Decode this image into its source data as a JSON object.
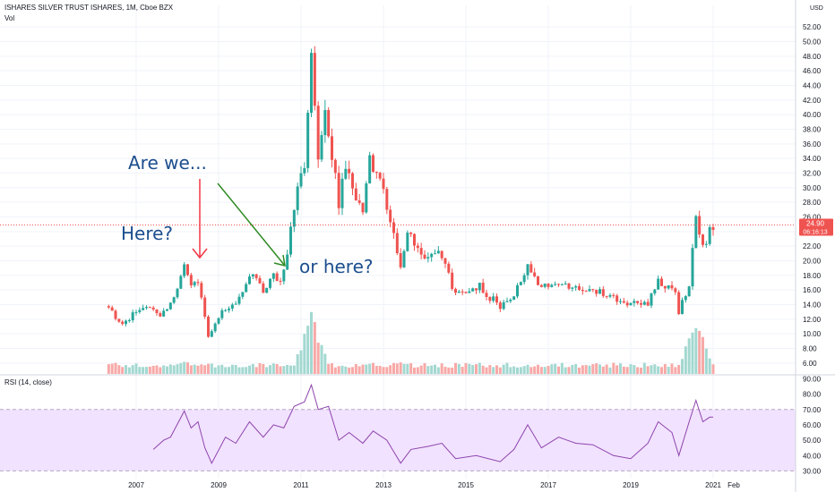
{
  "header": {
    "symbol_line": "ISHARES SILVER TRUST ISHARES, 1M, Cboe BZX",
    "vol_label": "Vol",
    "currency": "USD",
    "rsi_label": "RSI (14, close)"
  },
  "annotations": {
    "are_we": "Are we...",
    "here": "Here?",
    "or_here": "or here?"
  },
  "last_price": {
    "value": "24.90",
    "countdown": "06:16:13",
    "color": "#ef5350"
  },
  "colors": {
    "up": "#26a69a",
    "down": "#ef5350",
    "vol_up": "#a3d8d1",
    "vol_down": "#f7a9a7",
    "rsi_line": "#8e44ad",
    "rsi_band": "#f1e2ff",
    "annotation_text": "#1c4e8e",
    "arrow_red": "#f23645",
    "arrow_green": "#2e8b22"
  },
  "chart_data": [
    {
      "type": "candlestick",
      "title": "ISHARES SILVER TRUST ISHARES, 1M, Cboe BZX",
      "x_ticks": [
        "2007",
        "2009",
        "2011",
        "2013",
        "2015",
        "2017",
        "2019",
        "2021",
        "Feb"
      ],
      "y_ticks": [
        "6.00",
        "8.00",
        "10.00",
        "12.00",
        "14.00",
        "16.00",
        "18.00",
        "20.00",
        "22.00",
        "24.00",
        "26.00",
        "28.00",
        "30.00",
        "32.00",
        "34.00",
        "36.00",
        "38.00",
        "40.00",
        "42.00",
        "44.00",
        "46.00",
        "48.00",
        "50.00",
        "52.00"
      ],
      "ylim": [
        5,
        53
      ],
      "series": [
        {
          "name": "price",
          "close_path": [
            [
              "2006-05",
              13.8
            ],
            [
              "2006-07",
              12.2
            ],
            [
              "2006-09",
              11.3
            ],
            [
              "2006-12",
              12.9
            ],
            [
              "2007-04",
              13.5
            ],
            [
              "2007-08",
              12.6
            ],
            [
              "2007-12",
              14.8
            ],
            [
              "2008-03",
              20.0
            ],
            [
              "2008-05",
              16.8
            ],
            [
              "2008-07",
              17.5
            ],
            [
              "2008-09",
              12.5
            ],
            [
              "2008-10",
              9.5
            ],
            [
              "2009-02",
              13.0
            ],
            [
              "2009-06",
              14.2
            ],
            [
              "2009-09",
              16.5
            ],
            [
              "2009-11",
              18.5
            ],
            [
              "2010-02",
              16.0
            ],
            [
              "2010-05",
              18.2
            ],
            [
              "2010-07",
              17.5
            ],
            [
              "2010-09",
              21.0
            ],
            [
              "2010-11",
              27.5
            ],
            [
              "2011-02",
              33.5
            ],
            [
              "2011-04",
              47.0
            ],
            [
              "2011-06",
              34.5
            ],
            [
              "2011-08",
              40.5
            ],
            [
              "2011-10",
              34.0
            ],
            [
              "2011-12",
              27.5
            ],
            [
              "2012-02",
              33.5
            ],
            [
              "2012-05",
              27.5
            ],
            [
              "2012-07",
              27.0
            ],
            [
              "2012-09",
              33.5
            ],
            [
              "2012-11",
              32.5
            ],
            [
              "2013-01",
              30.5
            ],
            [
              "2013-04",
              23.5
            ],
            [
              "2013-06",
              19.0
            ],
            [
              "2013-08",
              23.3
            ],
            [
              "2014-02",
              20.5
            ],
            [
              "2014-06",
              20.7
            ],
            [
              "2014-09",
              16.5
            ],
            [
              "2014-12",
              15.5
            ],
            [
              "2015-05",
              16.5
            ],
            [
              "2015-11",
              13.6
            ],
            [
              "2016-03",
              15.0
            ],
            [
              "2016-07",
              19.5
            ],
            [
              "2016-11",
              16.3
            ],
            [
              "2017-03",
              17.2
            ],
            [
              "2017-12",
              16.0
            ],
            [
              "2018-06",
              15.5
            ],
            [
              "2018-12",
              14.0
            ],
            [
              "2019-03",
              14.1
            ],
            [
              "2019-06",
              14.3
            ],
            [
              "2019-09",
              17.0
            ],
            [
              "2020-02",
              16.0
            ],
            [
              "2020-03",
              13.2
            ],
            [
              "2020-06",
              16.5
            ],
            [
              "2020-08",
              26.5
            ],
            [
              "2020-10",
              21.9
            ],
            [
              "2020-12",
              24.0
            ],
            [
              "2021-01",
              24.9
            ]
          ]
        },
        {
          "name": "volume",
          "relative_peaks": [
            [
              "2011-04",
              1.0
            ],
            [
              "2020-08",
              0.9
            ],
            [
              "2008-03",
              0.25
            ],
            [
              "2013-06",
              0.2
            ]
          ]
        }
      ],
      "last_value": 24.9
    },
    {
      "type": "line",
      "title": "RSI (14, close)",
      "y_ticks": [
        "30.00",
        "40.00",
        "50.00",
        "60.00",
        "70.00",
        "80.00",
        "90.00"
      ],
      "ylim": [
        25,
        92
      ],
      "band": [
        30,
        70
      ],
      "series": [
        {
          "name": "RSI (14, close)",
          "points": [
            [
              "2007-06",
              44
            ],
            [
              "2007-09",
              50
            ],
            [
              "2007-11",
              52
            ],
            [
              "2008-03",
              69
            ],
            [
              "2008-05",
              58
            ],
            [
              "2008-07",
              62
            ],
            [
              "2008-09",
              45
            ],
            [
              "2008-11",
              35
            ],
            [
              "2009-03",
              52
            ],
            [
              "2009-06",
              48
            ],
            [
              "2009-10",
              62
            ],
            [
              "2010-02",
              52
            ],
            [
              "2010-05",
              60
            ],
            [
              "2010-08",
              58
            ],
            [
              "2010-11",
              72
            ],
            [
              "2011-02",
              75
            ],
            [
              "2011-04",
              86
            ],
            [
              "2011-06",
              70
            ],
            [
              "2011-09",
              72
            ],
            [
              "2011-12",
              50
            ],
            [
              "2012-03",
              55
            ],
            [
              "2012-07",
              48
            ],
            [
              "2012-10",
              56
            ],
            [
              "2013-02",
              50
            ],
            [
              "2013-06",
              35
            ],
            [
              "2013-09",
              44
            ],
            [
              "2014-02",
              46
            ],
            [
              "2014-06",
              48
            ],
            [
              "2014-10",
              38
            ],
            [
              "2015-04",
              40
            ],
            [
              "2015-11",
              36
            ],
            [
              "2016-03",
              44
            ],
            [
              "2016-07",
              60
            ],
            [
              "2016-11",
              45
            ],
            [
              "2017-04",
              52
            ],
            [
              "2017-09",
              48
            ],
            [
              "2018-02",
              47
            ],
            [
              "2018-08",
              40
            ],
            [
              "2019-01",
              38
            ],
            [
              "2019-06",
              48
            ],
            [
              "2019-09",
              62
            ],
            [
              "2020-01",
              55
            ],
            [
              "2020-03",
              40
            ],
            [
              "2020-06",
              62
            ],
            [
              "2020-08",
              76
            ],
            [
              "2020-10",
              62
            ],
            [
              "2020-12",
              65
            ],
            [
              "2021-01",
              65
            ]
          ]
        }
      ]
    }
  ]
}
